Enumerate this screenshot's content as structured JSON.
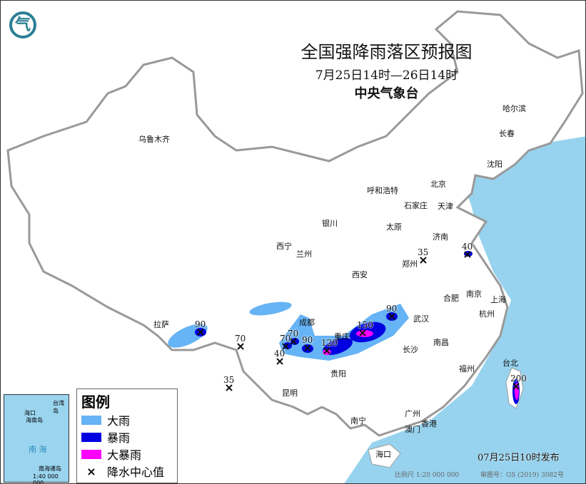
{
  "title": "全国强降雨落区预报图",
  "period": "7月25日14时—26日14时",
  "agency": "中央气象台",
  "logo_icon": "cma-logo",
  "colors": {
    "sea": "#97d3ee",
    "heavy_rain": "#66b3f5",
    "rainstorm": "#0000e0",
    "heavy_rainstorm": "#ff00ff",
    "land": "#ffffff"
  },
  "cities": [
    "乌鲁木齐",
    "哈尔滨",
    "长春",
    "沈阳",
    "北京",
    "天津",
    "呼和浩特",
    "石家庄",
    "太原",
    "济南",
    "银川",
    "西宁",
    "兰州",
    "郑州",
    "西安",
    "合肥",
    "南京",
    "上海",
    "杭州",
    "成都",
    "重庆",
    "武汉",
    "长沙",
    "南昌",
    "拉萨",
    "贵阳",
    "昆明",
    "福州",
    "台北",
    "南宁",
    "广州",
    "澳门",
    "香港",
    "海口"
  ],
  "rainfall_centers": [
    "90",
    "70",
    "35",
    "70",
    "70",
    "90",
    "40",
    "120",
    "150",
    "90",
    "40",
    "35",
    "200"
  ],
  "legend": {
    "title": "图例",
    "items": [
      {
        "label": "大雨",
        "color": "#66b3f5"
      },
      {
        "label": "暴雨",
        "color": "#0000e0"
      },
      {
        "label": "大暴雨",
        "color": "#ff00ff"
      },
      {
        "label": "降水中心值",
        "symbol": "×"
      }
    ]
  },
  "inset": {
    "sea": "南 海",
    "island": "海南岛",
    "city": "海口",
    "islands": "南海诸岛",
    "taiwan": "台湾岛",
    "scale": "1:40 000 000"
  },
  "issued": "07月25日10时发布",
  "scale": "比例尺 1:20 000 000",
  "approval": "审图号：GS (2019) 3082号"
}
